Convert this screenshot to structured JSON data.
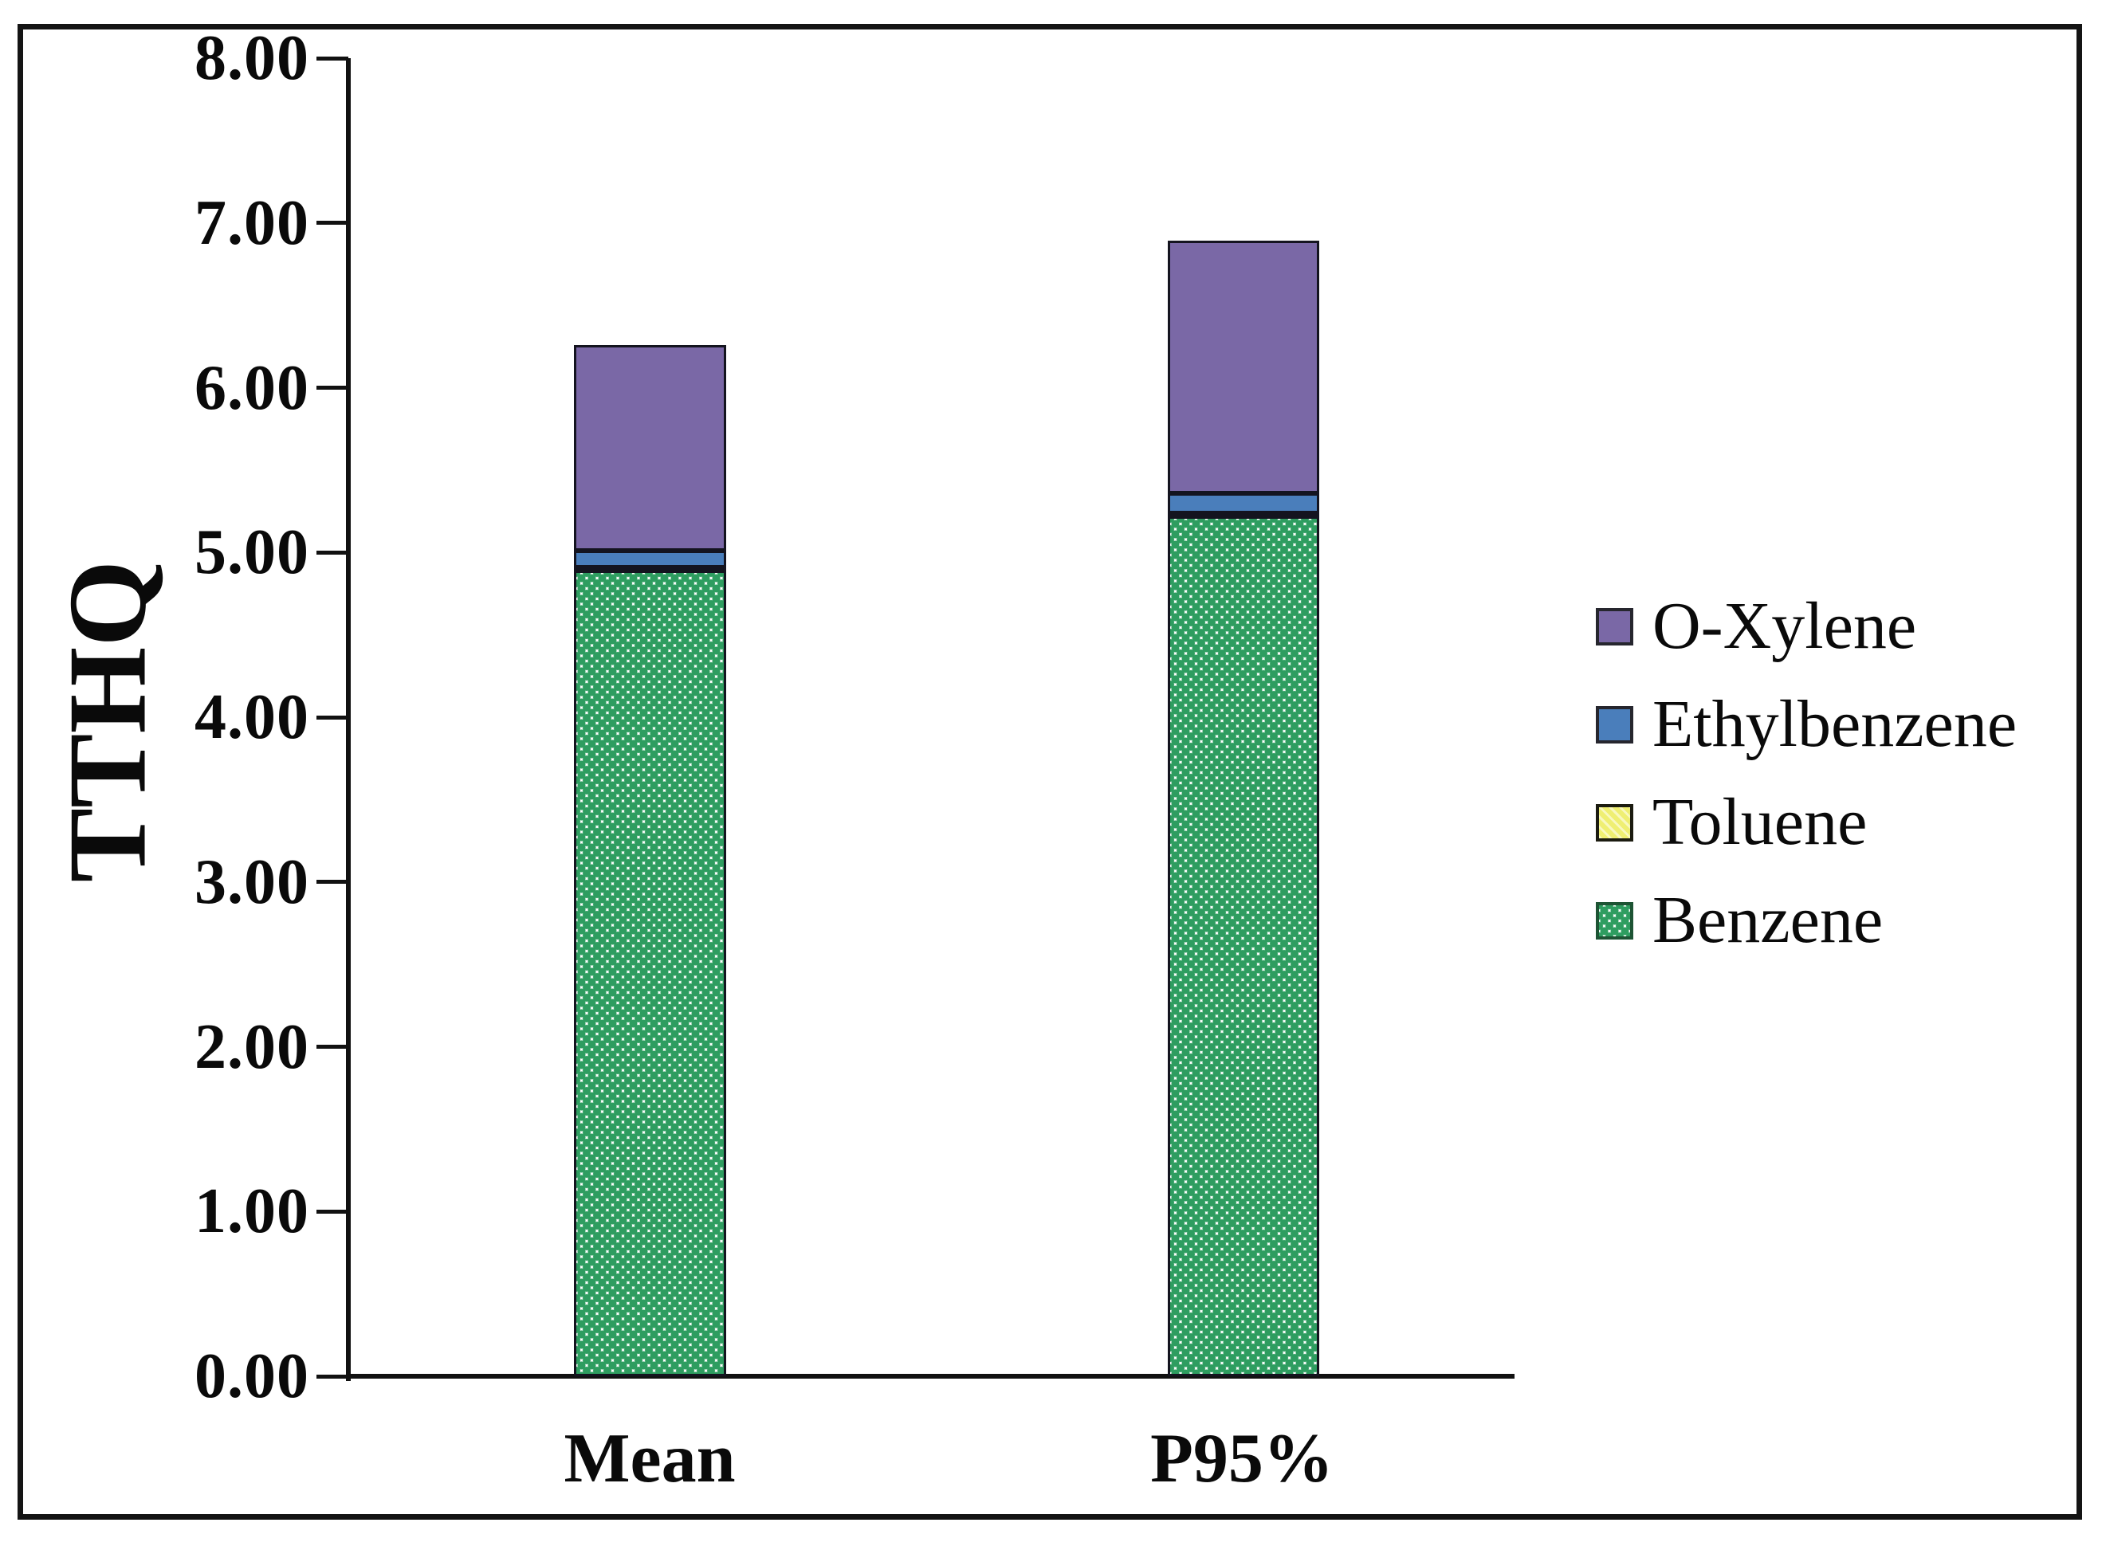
{
  "chart_data": {
    "type": "bar",
    "stacked": true,
    "title": "",
    "categories": [
      "Mean",
      "P95%"
    ],
    "series": [
      {
        "name": "Benzene",
        "values": [
          4.89,
          5.22
        ],
        "fill": "pattern-green-diamond",
        "color": "#2E9D60"
      },
      {
        "name": "Toluene",
        "values": [
          0.02,
          0.02
        ],
        "fill": "pattern-yellow-hatch",
        "color": "#EFEF72"
      },
      {
        "name": "Ethylbenzene",
        "values": [
          0.1,
          0.12
        ],
        "fill": "solid",
        "color": "#4A7EBB"
      },
      {
        "name": "O-Xylene",
        "values": [
          1.25,
          1.53
        ],
        "fill": "solid",
        "color": "#7A68A6"
      }
    ],
    "totals": [
      6.26,
      6.89
    ],
    "ylabel": "TTHQ",
    "xlabel": "",
    "ylim": [
      0,
      8
    ],
    "ytick_step": 1.0,
    "ytick_labels": [
      "0.00",
      "1.00",
      "2.00",
      "3.00",
      "4.00",
      "5.00",
      "6.00",
      "7.00",
      "8.00"
    ],
    "grid": false,
    "legend_position": "right",
    "legend_order": [
      "O-Xylene",
      "Ethylbenzene",
      "Toluene",
      "Benzene"
    ]
  },
  "figure": {
    "background": "#ffffff",
    "frame_color": "#141414",
    "axis_color": "#111111"
  }
}
